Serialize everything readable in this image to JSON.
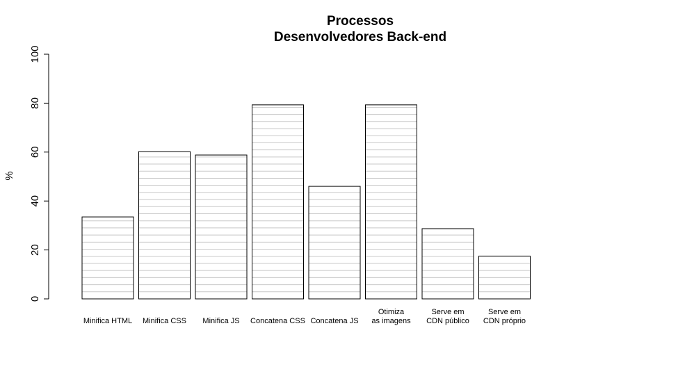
{
  "chart_data": {
    "type": "bar",
    "title": "Processos",
    "subtitle": "Desenvolvedores Back-end",
    "ylabel": "%",
    "xlabel": "",
    "ylim": [
      0,
      100
    ],
    "yticks": [
      "0",
      "20",
      "40",
      "60",
      "80",
      "100"
    ],
    "categories": [
      [
        "Minifica HTML"
      ],
      [
        "Minifica CSS"
      ],
      [
        "Minifica JS"
      ],
      [
        "Concatena CSS"
      ],
      [
        "Concatena JS"
      ],
      [
        "Otimiza",
        "as imagens"
      ],
      [
        "Serve em",
        "CDN público"
      ],
      [
        "Serve em",
        "CDN próprio"
      ]
    ],
    "values": [
      33.5,
      60.2,
      58.8,
      79.3,
      46.0,
      79.3,
      28.7,
      17.5
    ],
    "grid": "horizontal lines inside bars",
    "legend": "none",
    "colors": {
      "bar_fill": "#ffffff",
      "bar_border": "#000000",
      "grid_line": "#c8c8c8"
    }
  }
}
